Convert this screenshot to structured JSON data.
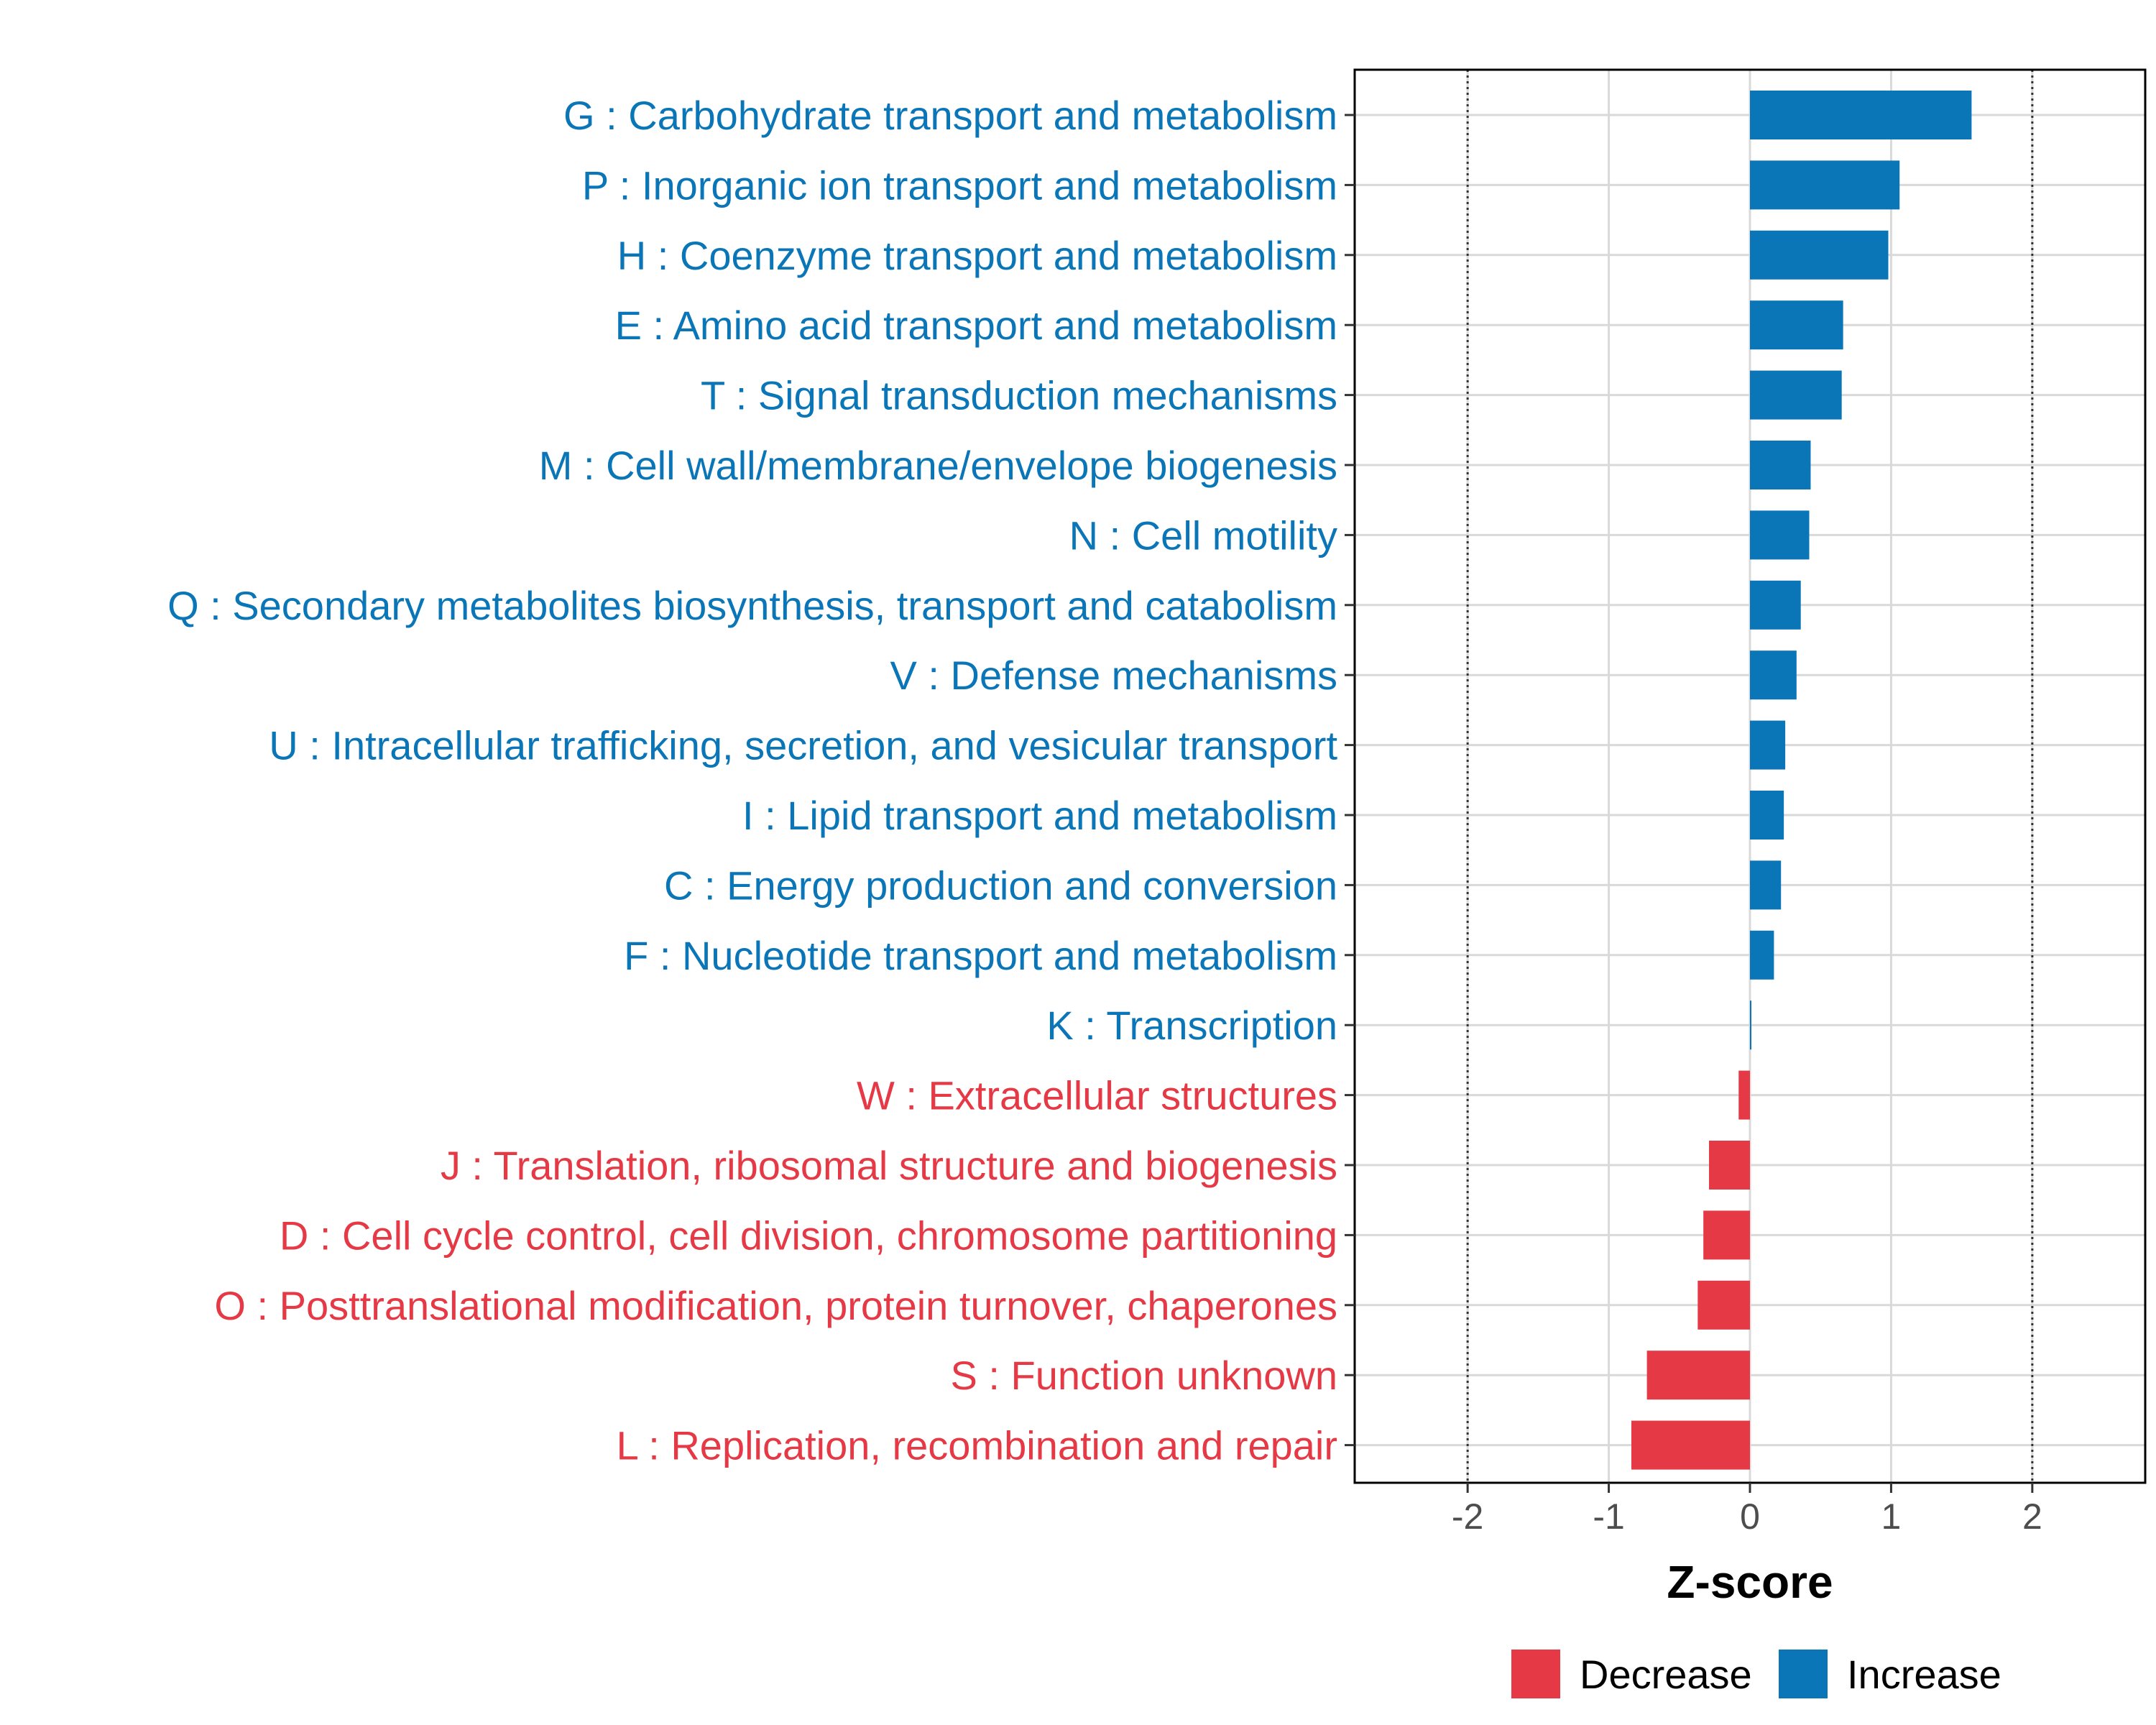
{
  "chart_data": {
    "type": "bar",
    "orientation": "horizontal",
    "xlabel": "Z-score",
    "xlim": [
      -2.8,
      2.8
    ],
    "xticks": [
      -2,
      -1,
      0,
      1,
      2
    ],
    "xtick_labels": [
      "-2",
      "-1",
      "0",
      "1",
      "2"
    ],
    "reference_lines": [
      -2,
      2
    ],
    "categories": [
      "G : Carbohydrate transport and metabolism",
      "P : Inorganic ion transport and metabolism",
      "H : Coenzyme transport and metabolism",
      "E : Amino acid transport and metabolism",
      "T : Signal transduction mechanisms",
      "M : Cell wall/membrane/envelope biogenesis",
      "N : Cell motility",
      "Q : Secondary metabolites biosynthesis, transport and catabolism",
      "V : Defense mechanisms",
      "U : Intracellular trafficking, secretion, and vesicular transport",
      "I : Lipid transport and metabolism",
      "C : Energy production and conversion",
      "F : Nucleotide transport and metabolism",
      "K : Transcription",
      "W : Extracellular structures",
      "J : Translation, ribosomal structure and biogenesis",
      "D : Cell cycle control, cell division, chromosome partitioning",
      "O : Posttranslational modification, protein turnover, chaperones",
      "S : Function unknown",
      "L : Replication, recombination and repair"
    ],
    "values": [
      1.57,
      1.06,
      0.98,
      0.66,
      0.65,
      0.43,
      0.42,
      0.36,
      0.33,
      0.25,
      0.24,
      0.22,
      0.17,
      0.01,
      -0.08,
      -0.29,
      -0.33,
      -0.37,
      -0.73,
      -0.84
    ],
    "series": [
      {
        "name": "Decrease",
        "color": "#e63946"
      },
      {
        "name": "Increase",
        "color": "#0a76b7"
      }
    ],
    "legend_position": "bottom"
  }
}
